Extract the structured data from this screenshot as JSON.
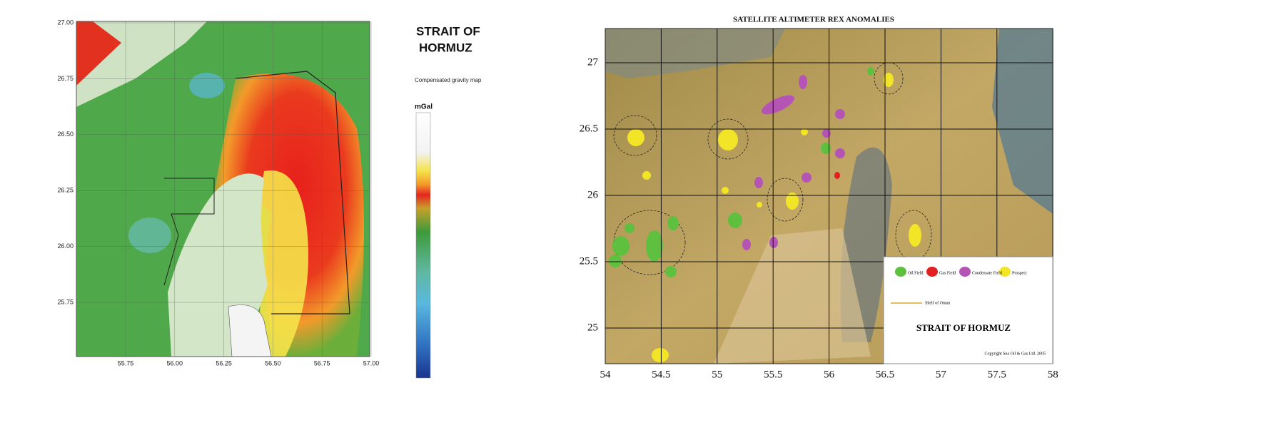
{
  "left_map": {
    "title_line1": "STRAIT OF",
    "title_line2": "HORMUZ",
    "subtitle": "Compensated gravity map",
    "unit_label": "mGal",
    "y_labels": [
      "27.00",
      "26.75",
      "26.50",
      "26.25",
      "26.00",
      "25.75"
    ],
    "x_labels": [
      "55.75",
      "56.00",
      "56.25",
      "56.50",
      "56.75",
      "57.00"
    ]
  },
  "right_map": {
    "title": "SATELLITE ALTIMETER REX ANOMALIES",
    "y_labels": [
      "27",
      "26.5",
      "26",
      "25.5",
      "25"
    ],
    "x_labels": [
      "54",
      "54.5",
      "55",
      "55.5",
      "56",
      "56.5",
      "57",
      "57.5",
      "58"
    ],
    "legend": [
      "Oil Field",
      "Gas Field",
      "Condensate Field",
      "Prospect"
    ],
    "line_legend": "Shelf of Oman",
    "map_title": "STRAIT OF HORMUZ",
    "copyright": "Copyright Sea Oil & Gas Ltd. 2005"
  }
}
